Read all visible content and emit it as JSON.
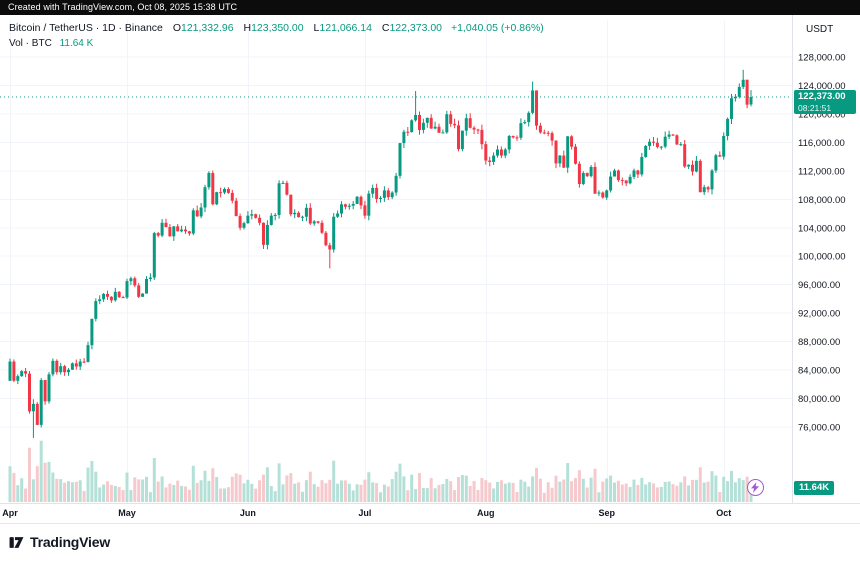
{
  "header": {
    "created_text": "Created with TradingView.com, Oct 08, 2025 15:38 UTC"
  },
  "legend": {
    "symbol": "Bitcoin / TetherUS · 1D · Binance",
    "o_label": "O",
    "o": "121,332.96",
    "h_label": "H",
    "h": "123,350.00",
    "l_label": "L",
    "l": "121,066.14",
    "c_label": "C",
    "c": "122,373.00",
    "change": "+1,040.05 (+0.86%)",
    "vol_label": "Vol · BTC",
    "vol_value": "11.64 K"
  },
  "price_scale": {
    "unit": "USDT",
    "last_price_badge": "122,373.00",
    "countdown": "08:21:51",
    "volume_badge": "11.64K"
  },
  "footer": {
    "brand": "TradingView"
  },
  "colors": {
    "up": "#089981",
    "down": "#F23645",
    "vol_up": "#B5E0D8",
    "vol_down": "#F6C9CD",
    "grid": "#F1F4F8",
    "axis_line": "#E0E3EB",
    "axis_text": "#131722"
  },
  "chart_data": {
    "type": "candlestick",
    "title": "Bitcoin / TetherUS, 1D, Binance, BTCUSDT",
    "x_labels": [
      "Apr",
      "May",
      "Jun",
      "Jul",
      "Aug",
      "Sep",
      "Oct"
    ],
    "month_start_indices": [
      0,
      30,
      61,
      91,
      122,
      153,
      183
    ],
    "y_ticks": [
      128000,
      124000,
      120000,
      116000,
      112000,
      108000,
      104000,
      100000,
      96000,
      92000,
      88000,
      84000,
      80000,
      76000
    ],
    "y_tick_labels": [
      "128,000.00",
      "124,000.00",
      "120,000.00",
      "116,000.00",
      "112,000.00",
      "108,000.00",
      "104,000.00",
      "100,000.00",
      "96,000.00",
      "92,000.00",
      "88,000.00",
      "84,000.00",
      "80,000.00",
      "76,000.00"
    ],
    "y_range": [
      74000,
      129600
    ],
    "grid": true,
    "legend_position": "top-left",
    "current_price": 122373,
    "last_candle": {
      "open": 121332.96,
      "high": 123350.0,
      "low": 121066.14,
      "close": 122373.0,
      "change": 1040.05,
      "change_pct": 0.86
    },
    "volume_today": "11.64 K",
    "first_open": 82500,
    "open_overrides": {
      "190": 121332.96
    },
    "closes": [
      85200,
      82500,
      83150,
      83850,
      83500,
      78200,
      79250,
      76300,
      82600,
      79600,
      83400,
      85300,
      83700,
      84550,
      83700,
      84050,
      84950,
      84500,
      85200,
      85150,
      87500,
      91200,
      93700,
      93950,
      94700,
      94300,
      93800,
      95000,
      94250,
      94200,
      96500,
      96900,
      95900,
      94300,
      94750,
      96800,
      97000,
      103250,
      102900,
      104700,
      104100,
      102800,
      104200,
      103500,
      103750,
      103500,
      103200,
      106450,
      105600,
      106850,
      109700,
      111700,
      107300,
      109000,
      108950,
      109450,
      108900,
      107800,
      105650,
      104000,
      104650,
      105700,
      105900,
      105400,
      104700,
      101600,
      104400,
      105700,
      105800,
      110250,
      110300,
      108650,
      105900,
      106100,
      105500,
      105550,
      106800,
      104600,
      104900,
      104700,
      103300,
      101550,
      100950,
      105550,
      106000,
      107300,
      106950,
      107100,
      107350,
      108350,
      107150,
      105700,
      108800,
      109600,
      108050,
      108200,
      109250,
      108300,
      108950,
      111300,
      115900,
      117500,
      117450,
      119100,
      119850,
      117750,
      118750,
      119450,
      117950,
      118200,
      117350,
      117400,
      119950,
      118600,
      118400,
      115050,
      117650,
      119400,
      118050,
      117800,
      117750,
      115750,
      113450,
      113250,
      114150,
      115000,
      114150,
      115000,
      116900,
      116700,
      116650,
      118700,
      118850,
      120150,
      123300,
      118350,
      117400,
      117350,
      117300,
      116250,
      113050,
      114150,
      112450,
      116850,
      115400,
      113000,
      110150,
      111700,
      111250,
      112550,
      108800,
      108950,
      108250,
      109250,
      111200,
      112050,
      110700,
      110650,
      110250,
      111150,
      112050,
      111500,
      113950,
      115500,
      116100,
      115950,
      115350,
      115400,
      116800,
      117100,
      117000,
      115700,
      115750,
      112600,
      112850,
      111900,
      113400,
      109000,
      109700,
      109400,
      112050,
      114200,
      114000,
      116900,
      119300,
      122200,
      122400,
      123800,
      124800,
      121300,
      122373
    ],
    "wick_overrides": {
      "6": [
        79900,
        74450
      ],
      "82": [
        101900,
        98300
      ],
      "104": [
        123218,
        118900
      ],
      "134": [
        124550,
        119950
      ],
      "188": [
        126199,
        123500
      ],
      "190": [
        123350,
        121066
      ]
    }
  }
}
